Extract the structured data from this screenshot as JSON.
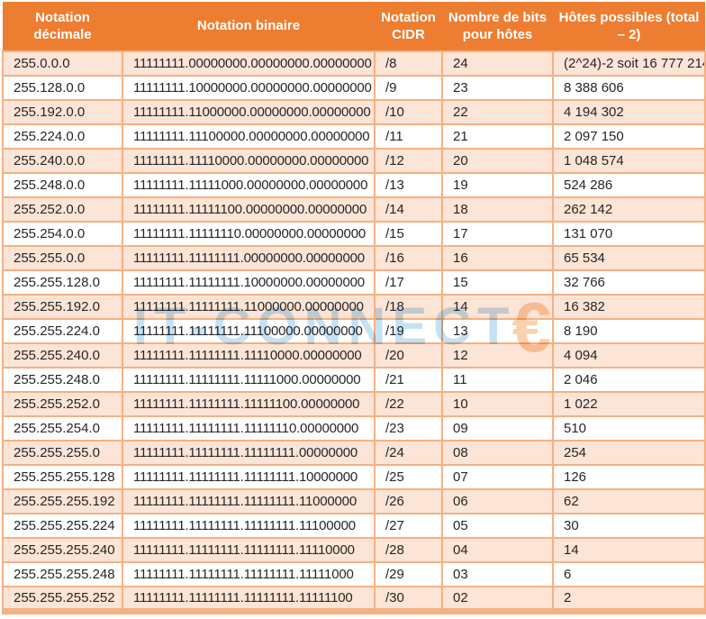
{
  "table": {
    "columns": [
      {
        "key": "decimal",
        "label": "Notation décimale"
      },
      {
        "key": "binary",
        "label": "Notation binaire"
      },
      {
        "key": "cidr",
        "label": "Notation CIDR"
      },
      {
        "key": "bits",
        "label": "Nombre de bits pour hôtes"
      },
      {
        "key": "hosts",
        "label": "Hôtes possibles (total – 2)"
      }
    ],
    "rows": [
      {
        "decimal": "255.0.0.0",
        "binary": "11111111.00000000.00000000.00000000",
        "cidr": "/8",
        "bits": "24",
        "hosts": "(2^24)-2 soit 16 777 214"
      },
      {
        "decimal": "255.128.0.0",
        "binary": "11111111.10000000.00000000.00000000",
        "cidr": "/9",
        "bits": "23",
        "hosts": "8 388 606"
      },
      {
        "decimal": "255.192.0.0",
        "binary": "11111111.11000000.00000000.00000000",
        "cidr": "/10",
        "bits": "22",
        "hosts": "4 194 302"
      },
      {
        "decimal": "255.224.0.0",
        "binary": "11111111.11100000.00000000.00000000",
        "cidr": "/11",
        "bits": "21",
        "hosts": "2 097 150"
      },
      {
        "decimal": "255.240.0.0",
        "binary": "11111111.11110000.00000000.00000000",
        "cidr": "/12",
        "bits": "20",
        "hosts": "1 048 574"
      },
      {
        "decimal": "255.248.0.0",
        "binary": "11111111.11111000.00000000.00000000",
        "cidr": "/13",
        "bits": "19",
        "hosts": "524 286"
      },
      {
        "decimal": "255.252.0.0",
        "binary": "11111111.11111100.00000000.00000000",
        "cidr": "/14",
        "bits": "18",
        "hosts": "262 142"
      },
      {
        "decimal": "255.254.0.0",
        "binary": "11111111.11111110.00000000.00000000",
        "cidr": "/15",
        "bits": "17",
        "hosts": "131 070"
      },
      {
        "decimal": "255.255.0.0",
        "binary": "11111111.11111111.00000000.00000000",
        "cidr": "/16",
        "bits": "16",
        "hosts": "65 534"
      },
      {
        "decimal": "255.255.128.0",
        "binary": "11111111.11111111.10000000.00000000",
        "cidr": "/17",
        "bits": "15",
        "hosts": "32 766"
      },
      {
        "decimal": "255.255.192.0",
        "binary": "11111111.11111111.11000000.00000000",
        "cidr": "/18",
        "bits": "14",
        "hosts": "16 382"
      },
      {
        "decimal": "255.255.224.0",
        "binary": "11111111.11111111.11100000.00000000",
        "cidr": "/19",
        "bits": "13",
        "hosts": "8 190"
      },
      {
        "decimal": "255.255.240.0",
        "binary": "11111111.11111111.11110000.00000000",
        "cidr": "/20",
        "bits": "12",
        "hosts": "4 094"
      },
      {
        "decimal": "255.255.248.0",
        "binary": "11111111.11111111.11111000.00000000",
        "cidr": "/21",
        "bits": "11",
        "hosts": "2 046"
      },
      {
        "decimal": "255.255.252.0",
        "binary": "11111111.11111111.11111100.00000000",
        "cidr": "/22",
        "bits": "10",
        "hosts": "1 022"
      },
      {
        "decimal": "255.255.254.0",
        "binary": "11111111.11111111.11111110.00000000",
        "cidr": "/23",
        "bits": "09",
        "hosts": "510"
      },
      {
        "decimal": "255.255.255.0",
        "binary": "11111111.11111111.11111111.00000000",
        "cidr": "/24",
        "bits": "08",
        "hosts": "254"
      },
      {
        "decimal": "255.255.255.128",
        "binary": "11111111.11111111.11111111.10000000",
        "cidr": "/25",
        "bits": "07",
        "hosts": "126"
      },
      {
        "decimal": "255.255.255.192",
        "binary": "11111111.11111111.11111111.11000000",
        "cidr": "/26",
        "bits": "06",
        "hosts": "62"
      },
      {
        "decimal": "255.255.255.224",
        "binary": "11111111.11111111.11111111.11100000",
        "cidr": "/27",
        "bits": "05",
        "hosts": "30"
      },
      {
        "decimal": "255.255.255.240",
        "binary": "11111111.11111111.11111111.11110000",
        "cidr": "/28",
        "bits": "04",
        "hosts": "14"
      },
      {
        "decimal": "255.255.255.248",
        "binary": "11111111.11111111.11111111.11111000",
        "cidr": "/29",
        "bits": "03",
        "hosts": "6"
      },
      {
        "decimal": "255.255.255.252",
        "binary": "11111111.11111111.11111111.11111100",
        "cidr": "/30",
        "bits": "02",
        "hosts": "2"
      }
    ]
  },
  "watermark": {
    "text": "IT-CONNECT",
    "symbol": "€"
  },
  "colors": {
    "header_bg": "#ED7D31",
    "header_text": "#FFFFFF",
    "row_odd": "#FCE4D6",
    "row_even": "#FFFFFF",
    "border": "#F4B183",
    "text": "#262626",
    "watermark_blue": "#C2E0F4",
    "watermark_orange": "#F5A860"
  }
}
